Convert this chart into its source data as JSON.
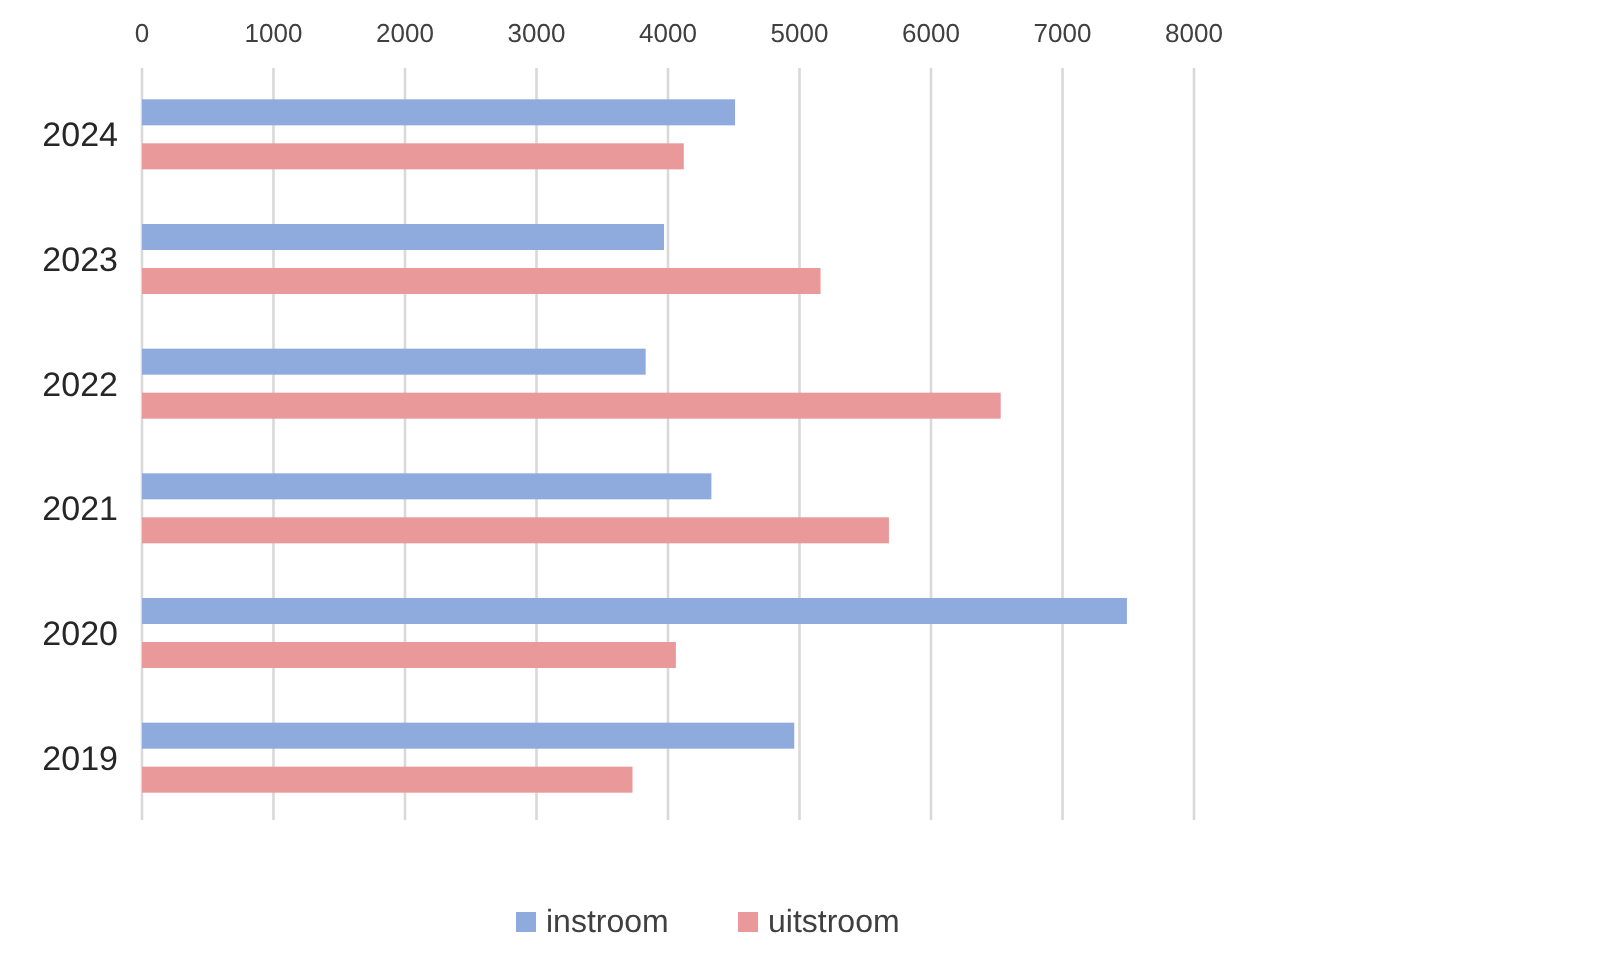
{
  "chart_data": {
    "type": "bar",
    "orientation": "horizontal",
    "categories": [
      "2024",
      "2023",
      "2022",
      "2021",
      "2020",
      "2019"
    ],
    "series": [
      {
        "name": "instroom",
        "color": "#8faadc",
        "values": [
          4510,
          3970,
          3830,
          4330,
          7490,
          4960
        ]
      },
      {
        "name": "uitstroom",
        "color": "#e99999",
        "values": [
          4120,
          5160,
          6530,
          5680,
          4060,
          3730
        ]
      }
    ],
    "xlim": [
      0,
      8000
    ],
    "xticks": [
      0,
      1000,
      2000,
      3000,
      4000,
      5000,
      6000,
      7000,
      8000
    ],
    "grid": "x",
    "legend": "bottom"
  }
}
